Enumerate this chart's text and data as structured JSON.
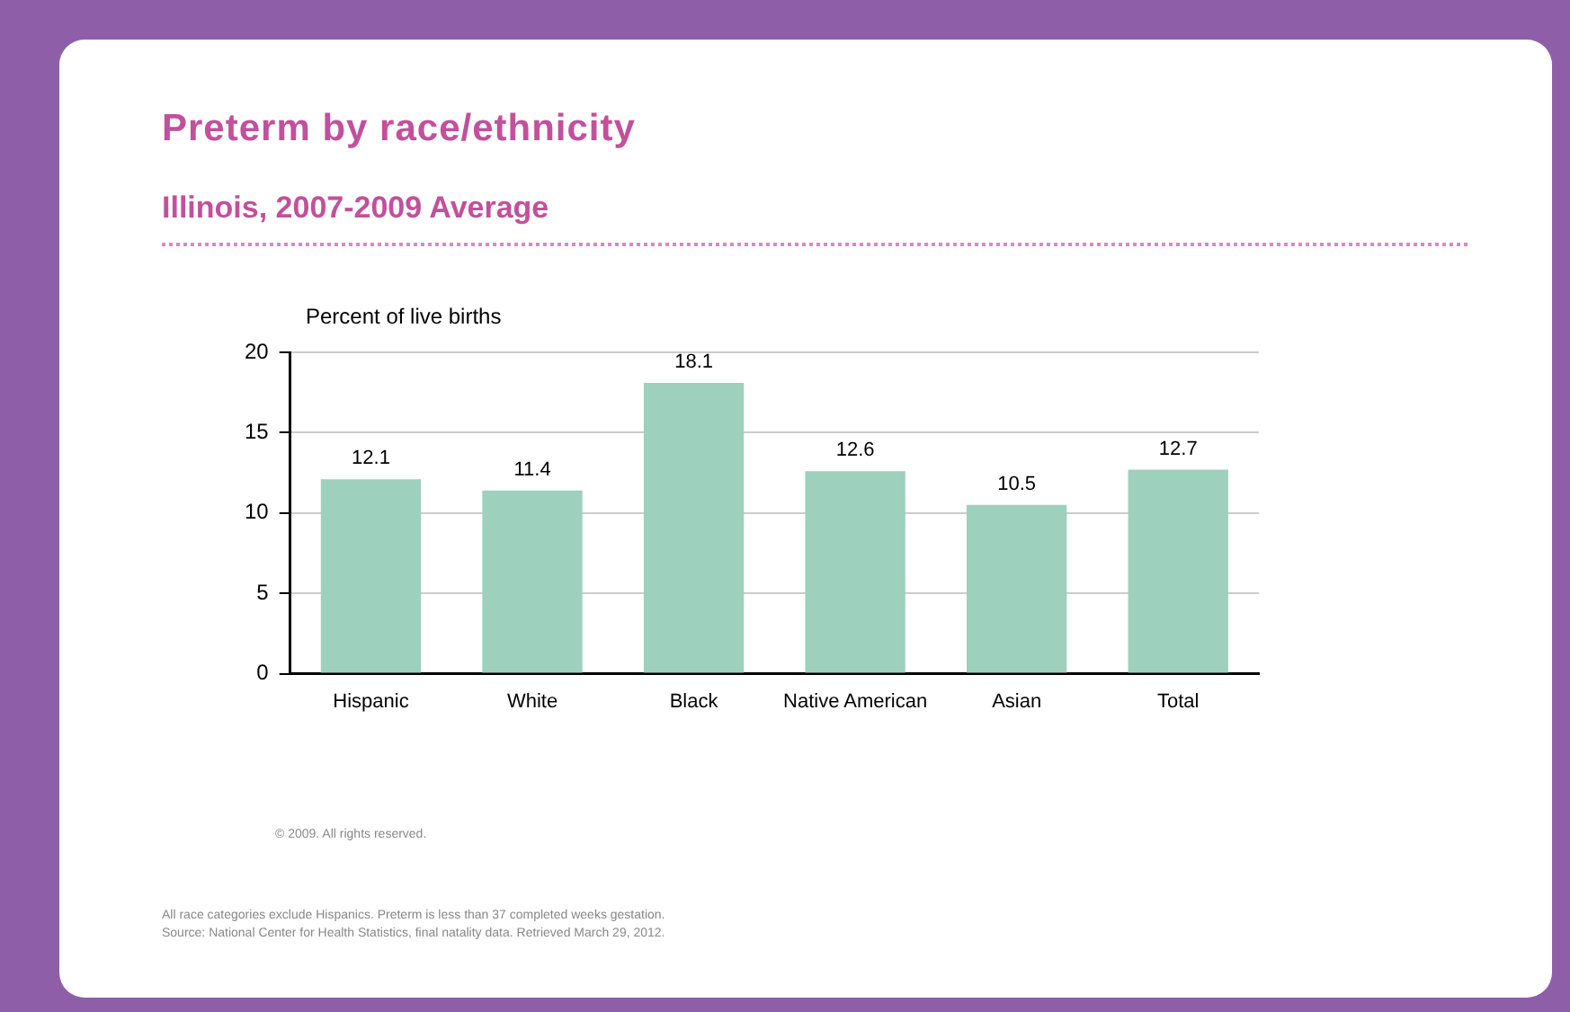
{
  "chart_data": {
    "type": "bar",
    "title": "Preterm by race/ethnicity",
    "subtitle": "Illinois,  2007-2009 Average",
    "ylabel": "Percent of live births",
    "categories": [
      "Hispanic",
      "White",
      "Black",
      "Native American",
      "Asian",
      "Total"
    ],
    "values": [
      12.1,
      11.4,
      18.1,
      12.6,
      10.5,
      12.7
    ],
    "color": "#9dd0bd",
    "ylim": [
      0,
      20
    ],
    "yticks": [
      0,
      5,
      10,
      15,
      20
    ],
    "grid": "y",
    "data_labels": true,
    "legend": false,
    "annotations": [
      "© 2009. All rights reserved.",
      "All race categories exclude Hispanics. Preterm is less than 37 completed weeks gestation.",
      "Source: National Center for Health Statistics, final natality data. Retrieved March 29, 2012."
    ]
  }
}
